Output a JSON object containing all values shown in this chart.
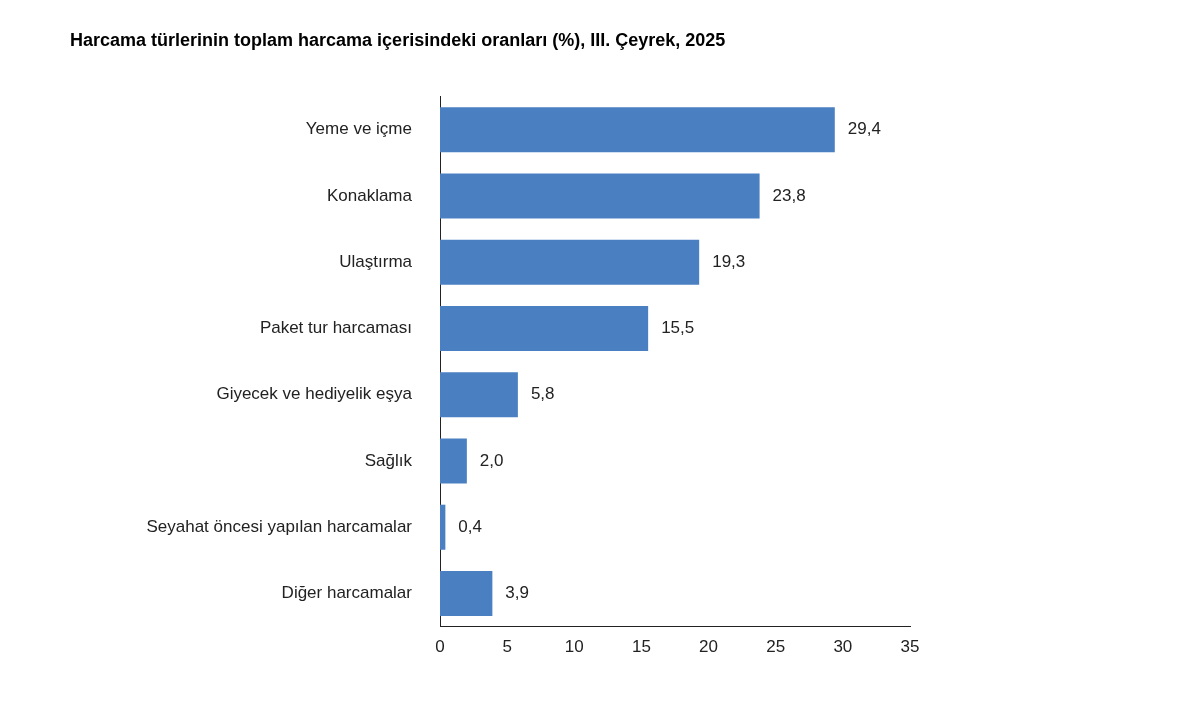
{
  "chart_data": {
    "type": "bar",
    "orientation": "horizontal",
    "title": "Harcama türlerinin toplam harcama içerisindeki oranları (%), III. Çeyrek, 2025",
    "categories": [
      "Yeme ve içme",
      "Konaklama",
      "Ulaştırma",
      "Paket tur harcaması",
      "Giyecek ve hediyelik eşya",
      "Sağlık",
      "Seyahat öncesi yapılan harcamalar",
      "Diğer harcamalar"
    ],
    "values": [
      29.4,
      23.8,
      19.3,
      15.5,
      5.8,
      2.0,
      0.4,
      3.9
    ],
    "value_labels": [
      "29,4",
      "23,8",
      "19,3",
      "15,5",
      "5,8",
      "2,0",
      "0,4",
      "3,9"
    ],
    "color": "#4a80c2",
    "xlim": [
      0,
      35
    ],
    "xticks": [
      0,
      5,
      10,
      15,
      20,
      25,
      30,
      35
    ],
    "grid": false,
    "legend": false
  }
}
